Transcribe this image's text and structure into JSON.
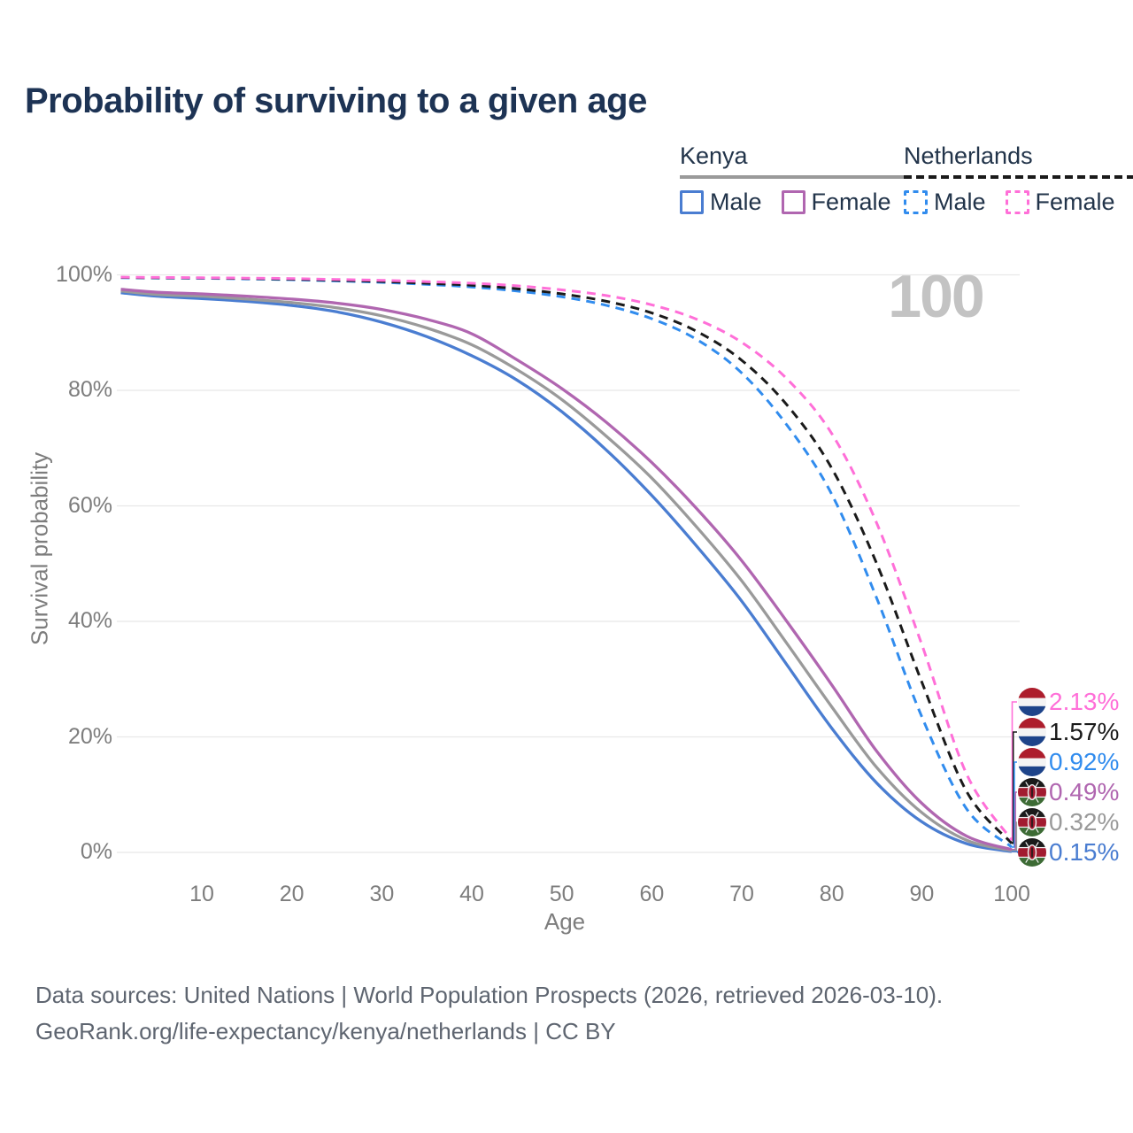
{
  "title": "Probability of surviving to a given age",
  "watermark_label": "100",
  "legend": {
    "kenya": {
      "label": "Kenya",
      "items": [
        {
          "label": "Male",
          "color": "#4a7dd1",
          "dashed": false
        },
        {
          "label": "Female",
          "color": "#b066b0",
          "dashed": false
        }
      ]
    },
    "netherlands": {
      "label": "Netherlands",
      "items": [
        {
          "label": "Male",
          "color": "#318cee",
          "dashed": true
        },
        {
          "label": "Female",
          "color": "#ff6fd8",
          "dashed": true
        }
      ]
    }
  },
  "chart_data": {
    "type": "line",
    "title": "Probability of surviving to a given age",
    "xlabel": "Age",
    "ylabel": "Survival probability",
    "xlim": [
      1,
      100
    ],
    "ylim": [
      0,
      100
    ],
    "grid": "horizontal-only",
    "legend_position": "top-right",
    "xticks": [
      10,
      20,
      30,
      40,
      50,
      60,
      70,
      80,
      90,
      100
    ],
    "yticks": [
      0,
      20,
      40,
      60,
      80,
      100
    ],
    "ytick_suffix": "%",
    "series": [
      {
        "name": "Netherlands Female",
        "country": "Netherlands",
        "sex": "Female",
        "color": "#ff6fd8",
        "dash": true,
        "end_label": "2.13%",
        "flag": "nl",
        "points": [
          [
            1,
            99.6
          ],
          [
            5,
            99.56
          ],
          [
            10,
            99.5
          ],
          [
            15,
            99.44
          ],
          [
            20,
            99.35
          ],
          [
            25,
            99.2
          ],
          [
            30,
            99.05
          ],
          [
            35,
            98.82
          ],
          [
            40,
            98.55
          ],
          [
            45,
            98.1
          ],
          [
            50,
            97.4
          ],
          [
            55,
            96.4
          ],
          [
            60,
            94.8
          ],
          [
            65,
            92.3
          ],
          [
            70,
            88.3
          ],
          [
            75,
            82.0
          ],
          [
            80,
            72.5
          ],
          [
            85,
            57.0
          ],
          [
            90,
            36.0
          ],
          [
            95,
            13.5
          ],
          [
            100,
            2.13
          ]
        ]
      },
      {
        "name": "Netherlands Both sexes",
        "country": "Netherlands",
        "sex": "Both",
        "color": "#1a1a1a",
        "dash": true,
        "end_label": "1.57%",
        "flag": "nl",
        "points": [
          [
            1,
            99.55
          ],
          [
            5,
            99.5
          ],
          [
            10,
            99.45
          ],
          [
            15,
            99.37
          ],
          [
            20,
            99.25
          ],
          [
            25,
            99.07
          ],
          [
            30,
            98.85
          ],
          [
            35,
            98.55
          ],
          [
            40,
            98.2
          ],
          [
            45,
            97.6
          ],
          [
            50,
            96.7
          ],
          [
            55,
            95.4
          ],
          [
            60,
            93.4
          ],
          [
            65,
            90.2
          ],
          [
            70,
            85.2
          ],
          [
            75,
            77.5
          ],
          [
            80,
            66.5
          ],
          [
            85,
            50.0
          ],
          [
            90,
            29.5
          ],
          [
            95,
            10.5
          ],
          [
            100,
            1.57
          ]
        ]
      },
      {
        "name": "Netherlands Male",
        "country": "Netherlands",
        "sex": "Male",
        "color": "#318cee",
        "dash": true,
        "end_label": "0.92%",
        "flag": "nl",
        "points": [
          [
            1,
            99.5
          ],
          [
            5,
            99.45
          ],
          [
            10,
            99.4
          ],
          [
            15,
            99.3
          ],
          [
            20,
            99.15
          ],
          [
            25,
            98.95
          ],
          [
            30,
            98.7
          ],
          [
            35,
            98.35
          ],
          [
            40,
            97.9
          ],
          [
            45,
            97.2
          ],
          [
            50,
            96.2
          ],
          [
            55,
            94.7
          ],
          [
            60,
            92.4
          ],
          [
            65,
            88.8
          ],
          [
            70,
            83.0
          ],
          [
            75,
            74.0
          ],
          [
            80,
            62.0
          ],
          [
            85,
            44.0
          ],
          [
            90,
            23.5
          ],
          [
            95,
            7.5
          ],
          [
            100,
            0.92
          ]
        ]
      },
      {
        "name": "Kenya Female",
        "country": "Kenya",
        "sex": "Female",
        "color": "#b066b0",
        "dash": false,
        "end_label": "0.49%",
        "flag": "ke",
        "points": [
          [
            1,
            97.5
          ],
          [
            5,
            97.0
          ],
          [
            10,
            96.7
          ],
          [
            15,
            96.3
          ],
          [
            20,
            95.8
          ],
          [
            25,
            95.1
          ],
          [
            30,
            94.0
          ],
          [
            35,
            92.3
          ],
          [
            40,
            89.8
          ],
          [
            45,
            85.3
          ],
          [
            50,
            80.3
          ],
          [
            55,
            74.4
          ],
          [
            60,
            67.5
          ],
          [
            65,
            59.5
          ],
          [
            70,
            50.5
          ],
          [
            75,
            40.0
          ],
          [
            80,
            29.0
          ],
          [
            85,
            17.5
          ],
          [
            90,
            8.5
          ],
          [
            95,
            2.8
          ],
          [
            100,
            0.49
          ]
        ]
      },
      {
        "name": "Kenya Both sexes",
        "country": "Kenya",
        "sex": "Both",
        "color": "#9a9a9a",
        "dash": false,
        "end_label": "0.32%",
        "flag": "ke",
        "points": [
          [
            1,
            97.2
          ],
          [
            5,
            96.6
          ],
          [
            10,
            96.3
          ],
          [
            15,
            95.8
          ],
          [
            20,
            95.2
          ],
          [
            25,
            94.3
          ],
          [
            30,
            92.9
          ],
          [
            35,
            90.8
          ],
          [
            40,
            87.9
          ],
          [
            45,
            83.6
          ],
          [
            50,
            78.4
          ],
          [
            55,
            72.0
          ],
          [
            60,
            64.8
          ],
          [
            65,
            56.3
          ],
          [
            70,
            47.0
          ],
          [
            75,
            36.2
          ],
          [
            80,
            25.2
          ],
          [
            85,
            14.7
          ],
          [
            90,
            6.9
          ],
          [
            95,
            2.1
          ],
          [
            100,
            0.32
          ]
        ]
      },
      {
        "name": "Kenya Male",
        "country": "Kenya",
        "sex": "Male",
        "color": "#4a7dd1",
        "dash": false,
        "end_label": "0.15%",
        "flag": "ke",
        "points": [
          [
            1,
            96.9
          ],
          [
            5,
            96.3
          ],
          [
            10,
            95.9
          ],
          [
            15,
            95.4
          ],
          [
            20,
            94.7
          ],
          [
            25,
            93.6
          ],
          [
            30,
            91.8
          ],
          [
            35,
            89.3
          ],
          [
            40,
            86.0
          ],
          [
            45,
            81.8
          ],
          [
            50,
            76.3
          ],
          [
            55,
            69.6
          ],
          [
            60,
            61.8
          ],
          [
            65,
            53.0
          ],
          [
            70,
            43.5
          ],
          [
            75,
            32.5
          ],
          [
            80,
            21.5
          ],
          [
            85,
            12.0
          ],
          [
            90,
            5.3
          ],
          [
            95,
            1.5
          ],
          [
            100,
            0.15
          ]
        ]
      }
    ]
  },
  "footer": {
    "line1": "Data sources: United Nations | World Population Prospects (2026, retrieved 2026-03-10).",
    "line2": "GeoRank.org/life-expectancy/kenya/netherlands | CC BY"
  },
  "flags": {
    "nl": {
      "red": "#ad1d2c",
      "white": "#f4f4f4",
      "blue": "#1e448a"
    },
    "ke": {
      "black": "#1a1a1a",
      "white": "#f2f2f2",
      "red": "#a21c30",
      "green": "#3d6b35"
    }
  },
  "grid_color": "#e8e8e8"
}
